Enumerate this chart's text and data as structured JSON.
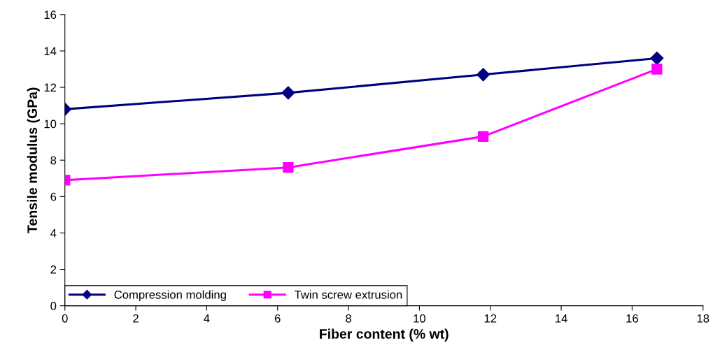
{
  "chart_data": {
    "type": "line",
    "xlabel": "Fiber content (% wt)",
    "ylabel": "Tensile modulus (GPa)",
    "xlim": [
      0,
      18
    ],
    "xticks": [
      0,
      2,
      4,
      6,
      8,
      10,
      12,
      14,
      16,
      18
    ],
    "ylim": [
      0,
      16
    ],
    "yticks": [
      0,
      2,
      4,
      6,
      8,
      10,
      12,
      14,
      16
    ],
    "grid": false,
    "legend": "bottom left",
    "series": [
      {
        "name": "Compression molding",
        "color": "#000080",
        "marker": "diamond",
        "x": [
          0,
          6.3,
          11.8,
          16.7
        ],
        "values": [
          10.8,
          11.7,
          12.7,
          13.6
        ]
      },
      {
        "name": "Twin screw extrusion",
        "color": "#ff00ff",
        "marker": "square",
        "x": [
          0,
          6.3,
          11.8,
          16.7
        ],
        "values": [
          6.9,
          7.6,
          9.3,
          13.0
        ]
      }
    ]
  }
}
